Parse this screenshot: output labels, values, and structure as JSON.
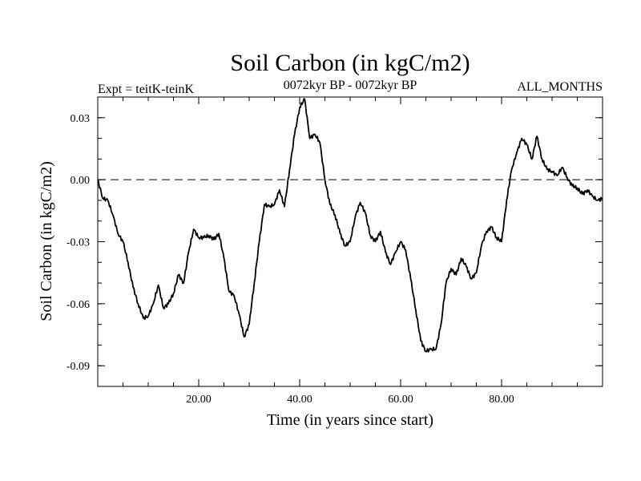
{
  "chart_data": {
    "type": "line",
    "title": "Soil Carbon (in kgC/m2)",
    "subtitle": "0072kyr BP - 0072kyr BP",
    "left_note": "Expt = teitK-teinK",
    "right_note": "ALL_MONTHS",
    "xlabel": "Time (in years since start)",
    "ylabel": "Soil Carbon (in kgC/m2)",
    "xlim": [
      0,
      100
    ],
    "ylim": [
      -0.1,
      0.04
    ],
    "x_ticks": [
      20,
      40,
      60,
      80
    ],
    "x_tick_labels": [
      "20.00",
      "40.00",
      "60.00",
      "80.00"
    ],
    "y_ticks": [
      0.03,
      0.0,
      -0.03,
      -0.06,
      -0.09
    ],
    "y_tick_labels": [
      "0.03",
      "0.00",
      "-0.03",
      "-0.06",
      "-0.09"
    ],
    "reference_line": 0.0,
    "line_color": "#000000",
    "series": [
      {
        "x": [
          0,
          1,
          2,
          3,
          4,
          5,
          6,
          7,
          8,
          9,
          10,
          11,
          12,
          13,
          14,
          15,
          16,
          17,
          18,
          19,
          20,
          21,
          22,
          23,
          24,
          25,
          26,
          27,
          28,
          29,
          30,
          31,
          32,
          33,
          34,
          35,
          36,
          37,
          38,
          39,
          40,
          41,
          42,
          43,
          44,
          45,
          46,
          47,
          48,
          49,
          50,
          51,
          52,
          53,
          54,
          55,
          56,
          57,
          58,
          59,
          60,
          61,
          62,
          63,
          64,
          65,
          66,
          67,
          68,
          69,
          70,
          71,
          72,
          73,
          74,
          75,
          76,
          77,
          78,
          79,
          80,
          81,
          82,
          83,
          84,
          85,
          86,
          87,
          88,
          89,
          90,
          91,
          92,
          93,
          94,
          95,
          96,
          97,
          98,
          99,
          100
        ],
        "values": [
          0.0,
          -0.009,
          -0.01,
          -0.017,
          -0.026,
          -0.03,
          -0.04,
          -0.052,
          -0.06,
          -0.067,
          -0.066,
          -0.06,
          -0.051,
          -0.062,
          -0.06,
          -0.055,
          -0.046,
          -0.05,
          -0.035,
          -0.024,
          -0.028,
          -0.028,
          -0.027,
          -0.029,
          -0.026,
          -0.038,
          -0.054,
          -0.056,
          -0.065,
          -0.076,
          -0.07,
          -0.05,
          -0.03,
          -0.012,
          -0.013,
          -0.012,
          -0.005,
          -0.013,
          0.005,
          0.022,
          0.035,
          0.039,
          0.02,
          0.022,
          0.018,
          0.0,
          -0.012,
          -0.017,
          -0.026,
          -0.032,
          -0.03,
          -0.018,
          -0.011,
          -0.016,
          -0.027,
          -0.03,
          -0.025,
          -0.035,
          -0.041,
          -0.035,
          -0.03,
          -0.034,
          -0.048,
          -0.063,
          -0.078,
          -0.083,
          -0.082,
          -0.082,
          -0.07,
          -0.05,
          -0.043,
          -0.046,
          -0.038,
          -0.042,
          -0.048,
          -0.045,
          -0.032,
          -0.025,
          -0.023,
          -0.028,
          -0.03,
          -0.01,
          0.005,
          0.013,
          0.02,
          0.017,
          0.01,
          0.021,
          0.01,
          0.005,
          0.004,
          0.002,
          0.006,
          0.001,
          -0.003,
          -0.004,
          -0.007,
          -0.005,
          -0.008,
          -0.01,
          -0.009
        ]
      }
    ]
  }
}
